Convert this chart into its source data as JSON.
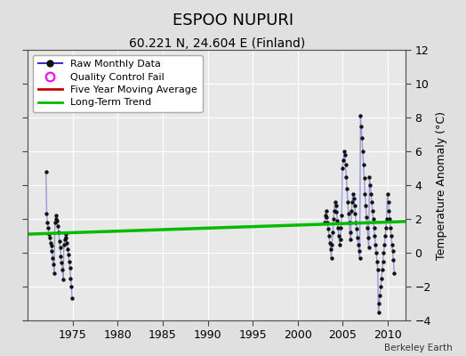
{
  "title": "ESPOO NUPURI",
  "subtitle": "60.221 N, 24.604 E (Finland)",
  "ylabel": "Temperature Anomaly (°C)",
  "credit": "Berkeley Earth",
  "xlim": [
    1970,
    2012
  ],
  "ylim": [
    -4,
    12
  ],
  "yticks": [
    -4,
    -2,
    0,
    2,
    4,
    6,
    8,
    10,
    12
  ],
  "xticks": [
    1975,
    1980,
    1985,
    1990,
    1995,
    2000,
    2005,
    2010
  ],
  "background_color": "#e0e0e0",
  "plot_bg_color": "#e8e8e8",
  "early_data": [
    [
      1972.0,
      4.8
    ],
    [
      1972.083,
      2.3
    ],
    [
      1972.167,
      1.8
    ],
    [
      1972.25,
      1.5
    ],
    [
      1972.333,
      1.1
    ],
    [
      1972.417,
      0.9
    ],
    [
      1972.5,
      0.6
    ],
    [
      1972.583,
      0.4
    ],
    [
      1972.667,
      0.1
    ],
    [
      1972.75,
      -0.3
    ],
    [
      1972.833,
      -0.7
    ],
    [
      1972.917,
      -1.2
    ],
    [
      1973.0,
      1.8
    ],
    [
      1973.083,
      2.0
    ],
    [
      1973.167,
      2.2
    ],
    [
      1973.25,
      1.9
    ],
    [
      1973.333,
      1.6
    ],
    [
      1973.417,
      1.2
    ],
    [
      1973.5,
      0.7
    ],
    [
      1973.583,
      0.3
    ],
    [
      1973.667,
      -0.2
    ],
    [
      1973.75,
      -0.6
    ],
    [
      1973.833,
      -1.0
    ],
    [
      1973.917,
      -1.6
    ],
    [
      1974.0,
      0.5
    ],
    [
      1974.083,
      0.8
    ],
    [
      1974.167,
      1.1
    ],
    [
      1974.25,
      0.9
    ],
    [
      1974.333,
      0.6
    ],
    [
      1974.417,
      0.2
    ],
    [
      1974.5,
      -0.1
    ],
    [
      1974.583,
      -0.5
    ],
    [
      1974.667,
      -0.9
    ],
    [
      1974.75,
      -1.5
    ],
    [
      1974.833,
      -2.0
    ],
    [
      1974.917,
      -2.7
    ]
  ],
  "modern_data": [
    [
      2003.0,
      1.8
    ],
    [
      2003.083,
      2.2
    ],
    [
      2003.167,
      2.5
    ],
    [
      2003.25,
      2.1
    ],
    [
      2003.333,
      1.8
    ],
    [
      2003.417,
      1.4
    ],
    [
      2003.5,
      1.0
    ],
    [
      2003.583,
      0.6
    ],
    [
      2003.667,
      0.2
    ],
    [
      2003.75,
      -0.3
    ],
    [
      2003.833,
      0.5
    ],
    [
      2003.917,
      1.2
    ],
    [
      2004.0,
      2.0
    ],
    [
      2004.083,
      2.5
    ],
    [
      2004.167,
      3.0
    ],
    [
      2004.25,
      2.8
    ],
    [
      2004.333,
      2.4
    ],
    [
      2004.417,
      1.9
    ],
    [
      2004.5,
      1.5
    ],
    [
      2004.583,
      1.0
    ],
    [
      2004.667,
      0.5
    ],
    [
      2004.75,
      0.8
    ],
    [
      2004.833,
      1.5
    ],
    [
      2004.917,
      2.2
    ],
    [
      2005.0,
      5.0
    ],
    [
      2005.083,
      5.5
    ],
    [
      2005.167,
      6.0
    ],
    [
      2005.25,
      5.8
    ],
    [
      2005.333,
      5.2
    ],
    [
      2005.417,
      4.5
    ],
    [
      2005.5,
      3.8
    ],
    [
      2005.583,
      3.0
    ],
    [
      2005.667,
      2.3
    ],
    [
      2005.75,
      1.8
    ],
    [
      2005.833,
      1.2
    ],
    [
      2005.917,
      0.8
    ],
    [
      2006.0,
      2.5
    ],
    [
      2006.083,
      3.0
    ],
    [
      2006.167,
      3.5
    ],
    [
      2006.25,
      3.2
    ],
    [
      2006.333,
      2.8
    ],
    [
      2006.417,
      2.3
    ],
    [
      2006.5,
      1.8
    ],
    [
      2006.583,
      1.4
    ],
    [
      2006.667,
      0.9
    ],
    [
      2006.75,
      0.5
    ],
    [
      2006.833,
      0.1
    ],
    [
      2006.917,
      -0.3
    ],
    [
      2007.0,
      8.1
    ],
    [
      2007.083,
      7.5
    ],
    [
      2007.167,
      6.8
    ],
    [
      2007.25,
      6.0
    ],
    [
      2007.333,
      5.2
    ],
    [
      2007.417,
      4.4
    ],
    [
      2007.5,
      3.5
    ],
    [
      2007.583,
      2.8
    ],
    [
      2007.667,
      2.1
    ],
    [
      2007.75,
      1.5
    ],
    [
      2007.833,
      0.9
    ],
    [
      2007.917,
      0.3
    ],
    [
      2008.0,
      4.5
    ],
    [
      2008.083,
      4.0
    ],
    [
      2008.167,
      3.5
    ],
    [
      2008.25,
      3.0
    ],
    [
      2008.333,
      2.5
    ],
    [
      2008.417,
      2.0
    ],
    [
      2008.5,
      1.5
    ],
    [
      2008.583,
      1.0
    ],
    [
      2008.667,
      0.5
    ],
    [
      2008.75,
      0.0
    ],
    [
      2008.833,
      -0.5
    ],
    [
      2008.917,
      -1.0
    ],
    [
      2009.0,
      -3.5
    ],
    [
      2009.083,
      -3.0
    ],
    [
      2009.167,
      -2.5
    ],
    [
      2009.25,
      -2.0
    ],
    [
      2009.333,
      -1.5
    ],
    [
      2009.417,
      -1.0
    ],
    [
      2009.5,
      -0.5
    ],
    [
      2009.583,
      0.0
    ],
    [
      2009.667,
      0.5
    ],
    [
      2009.75,
      1.0
    ],
    [
      2009.833,
      1.5
    ],
    [
      2009.917,
      2.0
    ],
    [
      2010.0,
      3.5
    ],
    [
      2010.083,
      3.0
    ],
    [
      2010.167,
      2.5
    ],
    [
      2010.25,
      2.0
    ],
    [
      2010.333,
      1.5
    ],
    [
      2010.417,
      1.0
    ],
    [
      2010.5,
      0.5
    ],
    [
      2010.583,
      0.1
    ],
    [
      2010.667,
      -0.4
    ],
    [
      2010.75,
      -1.2
    ]
  ],
  "trend_x": [
    1970,
    2012
  ],
  "trend_y": [
    1.1,
    1.85
  ],
  "line_color": "#3333cc",
  "line_alpha": 0.45,
  "line_width": 1.0,
  "marker_color": "#111111",
  "marker_size": 10,
  "ma_color": "#cc0000",
  "trend_color": "#00bb00",
  "trend_linewidth": 2.5,
  "title_fontsize": 13,
  "subtitle_fontsize": 10,
  "legend_fontsize": 8,
  "tick_fontsize": 9,
  "ylabel_fontsize": 9,
  "credit_fontsize": 7.5
}
